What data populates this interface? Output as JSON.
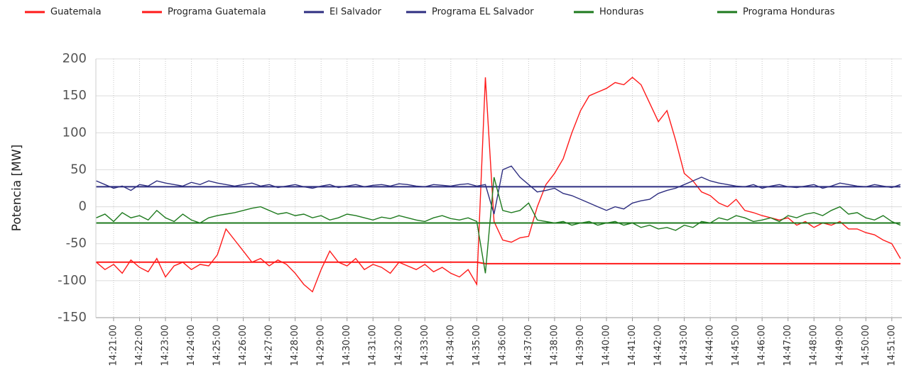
{
  "chart_data": {
    "type": "line",
    "y_label": "Potencia [MW]",
    "ylim": [
      -150,
      200
    ],
    "yticks": [
      -150,
      -100,
      -50,
      0,
      50,
      100,
      150,
      200
    ],
    "grid": true,
    "categories": [
      null,
      null,
      "14:21:00",
      null,
      null,
      "14:22:00",
      null,
      null,
      "14:23:00",
      null,
      null,
      "14:24:00",
      null,
      null,
      "14:25:00",
      null,
      null,
      "14:26:00",
      null,
      null,
      "14:27:00",
      null,
      null,
      "14:28:00",
      null,
      null,
      "14:29:00",
      null,
      null,
      "14:30:00",
      null,
      null,
      "14:31:00",
      null,
      null,
      "14:32:00",
      null,
      null,
      "14:33:00",
      null,
      null,
      "14:34:00",
      null,
      null,
      "14:35:00",
      null,
      null,
      "14:36:00",
      null,
      null,
      "14:37:00",
      null,
      null,
      "14:38:00",
      null,
      null,
      "14:39:00",
      null,
      null,
      "14:40:00",
      null,
      null,
      "14:41:00",
      null,
      null,
      "14:42:00",
      null,
      null,
      "14:43:00",
      null,
      null,
      "14:44:00",
      null,
      null,
      "14:45:00",
      null,
      null,
      "14:46:00",
      null,
      null,
      "14:47:00",
      null,
      null,
      "14:48:00",
      null,
      null,
      "14:49:00",
      null,
      null,
      "14:50:00",
      null,
      null,
      "14:51:00",
      null
    ],
    "series": [
      {
        "name": "Guatemala",
        "color": "#ff1a1a",
        "values": [
          -75,
          -85,
          -78,
          -90,
          -72,
          -82,
          -88,
          -70,
          -95,
          -80,
          -75,
          -85,
          -78,
          -80,
          -65,
          -30,
          -45,
          -60,
          -75,
          -70,
          -80,
          -72,
          -78,
          -90,
          -105,
          -115,
          -85,
          -60,
          -75,
          -80,
          -70,
          -85,
          -78,
          -82,
          -90,
          -75,
          -80,
          -85,
          -78,
          -88,
          -82,
          -90,
          -95,
          -85,
          -105,
          175,
          -20,
          -45,
          -48,
          -42,
          -40,
          0,
          30,
          45,
          65,
          100,
          130,
          150,
          155,
          160,
          168,
          165,
          175,
          165,
          140,
          115,
          130,
          90,
          45,
          35,
          20,
          15,
          5,
          0,
          10,
          -5,
          -8,
          -12,
          -15,
          -18,
          -15,
          -25,
          -20,
          -28,
          -22,
          -25,
          -20,
          -30,
          -30,
          -35,
          -38,
          -45,
          -50,
          -70
        ]
      },
      {
        "name": "Programa Guatemala",
        "color": "#ff1a1a",
        "values": [
          -75,
          -75,
          -75,
          -75,
          -75,
          -75,
          -75,
          -75,
          -75,
          -75,
          -75,
          -75,
          -75,
          -75,
          -75,
          -75,
          -75,
          -75,
          -75,
          -75,
          -75,
          -75,
          -75,
          -75,
          -75,
          -75,
          -75,
          -75,
          -75,
          -75,
          -75,
          -75,
          -75,
          -75,
          -75,
          -75,
          -75,
          -75,
          -75,
          -75,
          -75,
          -75,
          -75,
          -75,
          -75,
          -77,
          -77,
          -77,
          -77,
          -77,
          -77,
          -77,
          -77,
          -77,
          -77,
          -77,
          -77,
          -77,
          -77,
          -77,
          -77,
          -77,
          -77,
          -77,
          -77,
          -77,
          -77,
          -77,
          -77,
          -77,
          -77,
          -77,
          -77,
          -77,
          -77,
          -77,
          -77,
          -77,
          -77,
          -77,
          -77,
          -77,
          -77,
          -77,
          -77,
          -77,
          -77,
          -77,
          -77,
          -77,
          -77,
          -77,
          -77,
          -77
        ]
      },
      {
        "name": "El Salvador",
        "color": "#2e2e80",
        "values": [
          35,
          30,
          25,
          28,
          22,
          30,
          28,
          35,
          32,
          30,
          28,
          33,
          30,
          35,
          32,
          30,
          28,
          30,
          32,
          28,
          30,
          26,
          28,
          30,
          27,
          25,
          28,
          30,
          26,
          28,
          30,
          27,
          29,
          30,
          28,
          31,
          30,
          28,
          27,
          30,
          29,
          28,
          30,
          31,
          28,
          30,
          -10,
          50,
          55,
          40,
          30,
          20,
          22,
          25,
          18,
          15,
          10,
          5,
          0,
          -5,
          0,
          -3,
          5,
          8,
          10,
          18,
          22,
          25,
          30,
          35,
          40,
          35,
          32,
          30,
          28,
          27,
          30,
          25,
          28,
          30,
          27,
          26,
          28,
          30,
          25,
          28,
          32,
          30,
          28,
          27,
          30,
          28,
          26,
          30
        ]
      },
      {
        "name": "Programa EL Salvador",
        "color": "#2e2e80",
        "values": [
          27,
          27,
          27,
          27,
          27,
          27,
          27,
          27,
          27,
          27,
          27,
          27,
          27,
          27,
          27,
          27,
          27,
          27,
          27,
          27,
          27,
          27,
          27,
          27,
          27,
          27,
          27,
          27,
          27,
          27,
          27,
          27,
          27,
          27,
          27,
          27,
          27,
          27,
          27,
          27,
          27,
          27,
          27,
          27,
          27,
          27,
          27,
          27,
          27,
          27,
          27,
          27,
          27,
          27,
          27,
          27,
          27,
          27,
          27,
          27,
          27,
          27,
          27,
          27,
          27,
          27,
          27,
          27,
          27,
          27,
          27,
          27,
          27,
          27,
          27,
          27,
          27,
          27,
          27,
          27,
          27,
          27,
          27,
          27,
          27,
          27,
          27,
          27,
          27,
          27,
          27,
          27,
          27,
          27
        ]
      },
      {
        "name": "Honduras",
        "color": "#1e7a1e",
        "values": [
          -15,
          -10,
          -20,
          -8,
          -15,
          -12,
          -18,
          -5,
          -15,
          -20,
          -10,
          -18,
          -22,
          -15,
          -12,
          -10,
          -8,
          -5,
          -2,
          0,
          -5,
          -10,
          -8,
          -12,
          -10,
          -15,
          -12,
          -18,
          -15,
          -10,
          -12,
          -15,
          -18,
          -14,
          -16,
          -12,
          -15,
          -18,
          -20,
          -15,
          -12,
          -16,
          -18,
          -15,
          -20,
          -90,
          40,
          -5,
          -8,
          -5,
          5,
          -18,
          -20,
          -22,
          -20,
          -25,
          -22,
          -20,
          -25,
          -22,
          -20,
          -25,
          -22,
          -28,
          -25,
          -30,
          -28,
          -32,
          -25,
          -28,
          -20,
          -22,
          -15,
          -18,
          -12,
          -15,
          -20,
          -18,
          -15,
          -20,
          -12,
          -15,
          -10,
          -8,
          -12,
          -5,
          0,
          -10,
          -8,
          -15,
          -18,
          -12,
          -20,
          -25
        ]
      },
      {
        "name": "Programa Honduras",
        "color": "#1e7a1e",
        "values": [
          -22,
          -22,
          -22,
          -22,
          -22,
          -22,
          -22,
          -22,
          -22,
          -22,
          -22,
          -22,
          -22,
          -22,
          -22,
          -22,
          -22,
          -22,
          -22,
          -22,
          -22,
          -22,
          -22,
          -22,
          -22,
          -22,
          -22,
          -22,
          -22,
          -22,
          -22,
          -22,
          -22,
          -22,
          -22,
          -22,
          -22,
          -22,
          -22,
          -22,
          -22,
          -22,
          -22,
          -22,
          -22,
          -22,
          -22,
          -22,
          -22,
          -22,
          -22,
          -22,
          -22,
          -22,
          -22,
          -22,
          -22,
          -22,
          -22,
          -22,
          -22,
          -22,
          -22,
          -22,
          -22,
          -22,
          -22,
          -22,
          -22,
          -22,
          -22,
          -22,
          -22,
          -22,
          -22,
          -22,
          -22,
          -22,
          -22,
          -22,
          -22,
          -22,
          -22,
          -22,
          -22,
          -22,
          -22,
          -22,
          -22,
          -22,
          -22,
          -22,
          -22,
          -22
        ]
      }
    ]
  }
}
